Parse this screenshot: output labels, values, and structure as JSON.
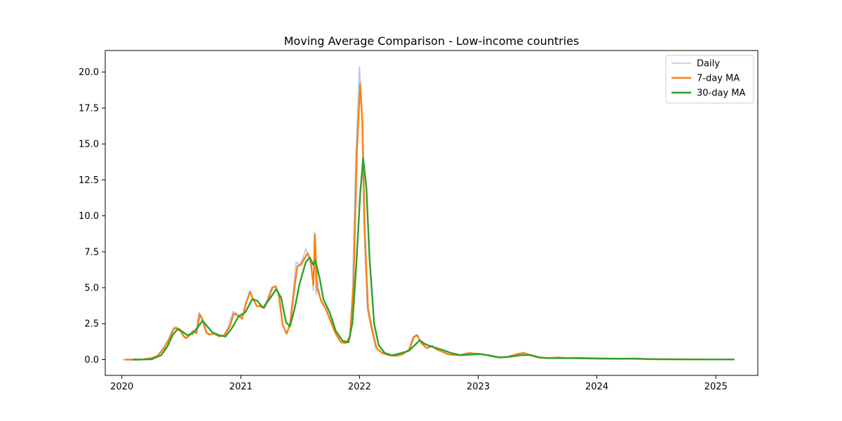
{
  "chart_data": {
    "type": "line",
    "title": "Moving Average Comparison - Low-income countries",
    "xlabel": "",
    "ylabel": "",
    "x_range": [
      "2019-11-11",
      "2025-05-10"
    ],
    "ylim": [
      -1.1,
      21.5
    ],
    "x_ticks": [
      {
        "date": "2020-01-01",
        "label": "2020"
      },
      {
        "date": "2021-01-01",
        "label": "2021"
      },
      {
        "date": "2022-01-01",
        "label": "2022"
      },
      {
        "date": "2023-01-01",
        "label": "2023"
      },
      {
        "date": "2024-01-01",
        "label": "2024"
      },
      {
        "date": "2025-01-01",
        "label": "2025"
      }
    ],
    "y_ticks": [
      {
        "value": 0,
        "label": "0.0"
      },
      {
        "value": 2.5,
        "label": "2.5"
      },
      {
        "value": 5,
        "label": "5.0"
      },
      {
        "value": 7.5,
        "label": "7.5"
      },
      {
        "value": 10,
        "label": "10.0"
      },
      {
        "value": 12.5,
        "label": "12.5"
      },
      {
        "value": 15,
        "label": "15.0"
      },
      {
        "value": 17.5,
        "label": "17.5"
      },
      {
        "value": 20,
        "label": "20.0"
      }
    ],
    "grid": false,
    "legend_position": "top-right",
    "series": [
      {
        "name": "Daily",
        "color": "#aec7e8",
        "points": [
          [
            "2020-01-05",
            0.0
          ],
          [
            "2020-03-01",
            0.0
          ],
          [
            "2020-04-01",
            0.1
          ],
          [
            "2020-04-20",
            0.3
          ],
          [
            "2020-05-10",
            0.9
          ],
          [
            "2020-05-25",
            1.5
          ],
          [
            "2020-06-05",
            2.1
          ],
          [
            "2020-06-12",
            2.3
          ],
          [
            "2020-06-25",
            2.15
          ],
          [
            "2020-07-05",
            1.7
          ],
          [
            "2020-07-15",
            1.45
          ],
          [
            "2020-07-25",
            1.7
          ],
          [
            "2020-08-05",
            2.0
          ],
          [
            "2020-08-15",
            1.8
          ],
          [
            "2020-08-25",
            3.3
          ],
          [
            "2020-09-03",
            2.8
          ],
          [
            "2020-09-15",
            1.9
          ],
          [
            "2020-09-25",
            1.7
          ],
          [
            "2020-10-10",
            1.8
          ],
          [
            "2020-10-25",
            1.6
          ],
          [
            "2020-11-10",
            1.7
          ],
          [
            "2020-11-25",
            2.4
          ],
          [
            "2020-12-08",
            3.35
          ],
          [
            "2020-12-20",
            3.2
          ],
          [
            "2021-01-05",
            2.8
          ],
          [
            "2021-01-15",
            3.8
          ],
          [
            "2021-01-28",
            4.8
          ],
          [
            "2021-02-08",
            4.2
          ],
          [
            "2021-02-18",
            3.7
          ],
          [
            "2021-03-01",
            3.75
          ],
          [
            "2021-03-12",
            3.6
          ],
          [
            "2021-03-25",
            4.3
          ],
          [
            "2021-04-05",
            5.0
          ],
          [
            "2021-04-15",
            5.1
          ],
          [
            "2021-04-25",
            4.7
          ],
          [
            "2021-05-08",
            2.5
          ],
          [
            "2021-05-20",
            1.8
          ],
          [
            "2021-05-30",
            2.3
          ],
          [
            "2021-06-10",
            4.5
          ],
          [
            "2021-06-20",
            6.8
          ],
          [
            "2021-06-30",
            6.6
          ],
          [
            "2021-07-10",
            7.0
          ],
          [
            "2021-07-20",
            7.7
          ],
          [
            "2021-07-28",
            7.2
          ],
          [
            "2021-08-05",
            6.5
          ],
          [
            "2021-08-12",
            4.8
          ],
          [
            "2021-08-15",
            8.9
          ],
          [
            "2021-08-20",
            4.5
          ],
          [
            "2021-08-25",
            5.5
          ],
          [
            "2021-09-05",
            4.0
          ],
          [
            "2021-09-20",
            3.5
          ],
          [
            "2021-10-05",
            2.7
          ],
          [
            "2021-10-20",
            1.8
          ],
          [
            "2021-11-05",
            1.2
          ],
          [
            "2021-11-20",
            1.15
          ],
          [
            "2021-12-01",
            1.5
          ],
          [
            "2021-12-10",
            4.5
          ],
          [
            "2021-12-20",
            14.0
          ],
          [
            "2022-01-01",
            20.4
          ],
          [
            "2022-01-08",
            17.0
          ],
          [
            "2022-01-15",
            9.0
          ],
          [
            "2022-01-25",
            3.5
          ],
          [
            "2022-02-05",
            2.2
          ],
          [
            "2022-02-20",
            0.8
          ],
          [
            "2022-03-10",
            0.45
          ],
          [
            "2022-04-01",
            0.3
          ],
          [
            "2022-04-20",
            0.25
          ],
          [
            "2022-05-10",
            0.35
          ],
          [
            "2022-06-01",
            0.7
          ],
          [
            "2022-06-15",
            1.6
          ],
          [
            "2022-06-25",
            1.75
          ],
          [
            "2022-07-10",
            1.1
          ],
          [
            "2022-07-25",
            0.8
          ],
          [
            "2022-08-10",
            0.95
          ],
          [
            "2022-08-25",
            0.7
          ],
          [
            "2022-09-10",
            0.55
          ],
          [
            "2022-10-01",
            0.35
          ],
          [
            "2022-11-01",
            0.3
          ],
          [
            "2022-12-01",
            0.45
          ],
          [
            "2023-01-01",
            0.4
          ],
          [
            "2023-02-01",
            0.3
          ],
          [
            "2023-03-01",
            0.15
          ],
          [
            "2023-04-01",
            0.2
          ],
          [
            "2023-05-01",
            0.4
          ],
          [
            "2023-05-20",
            0.5
          ],
          [
            "2023-06-10",
            0.3
          ],
          [
            "2023-07-01",
            0.15
          ],
          [
            "2023-08-01",
            0.1
          ],
          [
            "2023-09-01",
            0.15
          ],
          [
            "2023-10-01",
            0.1
          ],
          [
            "2023-11-01",
            0.12
          ],
          [
            "2024-01-01",
            0.08
          ],
          [
            "2024-03-01",
            0.05
          ],
          [
            "2024-05-01",
            0.08
          ],
          [
            "2024-06-01",
            0.03
          ],
          [
            "2024-09-01",
            0.02
          ],
          [
            "2025-01-01",
            0.01
          ],
          [
            "2025-02-25",
            0.01
          ]
        ]
      },
      {
        "name": "7-day MA",
        "color": "#ff7f0e",
        "points": [
          [
            "2020-01-12",
            0.0
          ],
          [
            "2020-03-01",
            0.0
          ],
          [
            "2020-04-01",
            0.1
          ],
          [
            "2020-04-20",
            0.25
          ],
          [
            "2020-05-10",
            0.8
          ],
          [
            "2020-05-25",
            1.4
          ],
          [
            "2020-06-08",
            2.1
          ],
          [
            "2020-06-15",
            2.2
          ],
          [
            "2020-06-28",
            2.1
          ],
          [
            "2020-07-08",
            1.65
          ],
          [
            "2020-07-18",
            1.5
          ],
          [
            "2020-07-28",
            1.7
          ],
          [
            "2020-08-08",
            2.0
          ],
          [
            "2020-08-18",
            1.85
          ],
          [
            "2020-08-28",
            3.15
          ],
          [
            "2020-09-05",
            2.8
          ],
          [
            "2020-09-18",
            1.85
          ],
          [
            "2020-09-28",
            1.75
          ],
          [
            "2020-10-12",
            1.8
          ],
          [
            "2020-10-28",
            1.6
          ],
          [
            "2020-11-12",
            1.7
          ],
          [
            "2020-11-28",
            2.3
          ],
          [
            "2020-12-10",
            3.2
          ],
          [
            "2020-12-22",
            3.1
          ],
          [
            "2021-01-05",
            2.85
          ],
          [
            "2021-01-18",
            4.0
          ],
          [
            "2021-01-30",
            4.7
          ],
          [
            "2021-02-10",
            4.1
          ],
          [
            "2021-02-20",
            3.7
          ],
          [
            "2021-03-03",
            3.7
          ],
          [
            "2021-03-15",
            3.6
          ],
          [
            "2021-03-28",
            4.3
          ],
          [
            "2021-04-08",
            5.0
          ],
          [
            "2021-04-18",
            5.1
          ],
          [
            "2021-04-28",
            4.5
          ],
          [
            "2021-05-10",
            2.4
          ],
          [
            "2021-05-22",
            1.8
          ],
          [
            "2021-06-02",
            2.5
          ],
          [
            "2021-06-14",
            4.8
          ],
          [
            "2021-06-24",
            6.5
          ],
          [
            "2021-07-05",
            6.6
          ],
          [
            "2021-07-15",
            7.0
          ],
          [
            "2021-07-25",
            7.4
          ],
          [
            "2021-08-03",
            7.0
          ],
          [
            "2021-08-12",
            5.2
          ],
          [
            "2021-08-17",
            8.7
          ],
          [
            "2021-08-23",
            5.0
          ],
          [
            "2021-09-05",
            4.1
          ],
          [
            "2021-09-20",
            3.5
          ],
          [
            "2021-10-05",
            2.6
          ],
          [
            "2021-10-20",
            1.8
          ],
          [
            "2021-11-05",
            1.2
          ],
          [
            "2021-11-20",
            1.15
          ],
          [
            "2021-12-03",
            1.6
          ],
          [
            "2021-12-14",
            5.5
          ],
          [
            "2021-12-24",
            14.5
          ],
          [
            "2022-01-03",
            19.2
          ],
          [
            "2022-01-10",
            16.5
          ],
          [
            "2022-01-17",
            9.0
          ],
          [
            "2022-01-27",
            3.6
          ],
          [
            "2022-02-08",
            2.2
          ],
          [
            "2022-02-22",
            0.8
          ],
          [
            "2022-03-12",
            0.45
          ],
          [
            "2022-04-03",
            0.3
          ],
          [
            "2022-04-22",
            0.25
          ],
          [
            "2022-05-12",
            0.35
          ],
          [
            "2022-06-03",
            0.7
          ],
          [
            "2022-06-17",
            1.55
          ],
          [
            "2022-06-27",
            1.7
          ],
          [
            "2022-07-12",
            1.1
          ],
          [
            "2022-07-27",
            0.8
          ],
          [
            "2022-08-12",
            0.95
          ],
          [
            "2022-08-27",
            0.7
          ],
          [
            "2022-09-12",
            0.55
          ],
          [
            "2022-10-03",
            0.35
          ],
          [
            "2022-11-03",
            0.3
          ],
          [
            "2022-12-03",
            0.45
          ],
          [
            "2023-01-03",
            0.4
          ],
          [
            "2023-02-03",
            0.3
          ],
          [
            "2023-03-03",
            0.15
          ],
          [
            "2023-04-03",
            0.2
          ],
          [
            "2023-05-03",
            0.4
          ],
          [
            "2023-05-22",
            0.45
          ],
          [
            "2023-06-12",
            0.3
          ],
          [
            "2023-07-03",
            0.15
          ],
          [
            "2023-08-03",
            0.1
          ],
          [
            "2023-09-03",
            0.15
          ],
          [
            "2023-10-03",
            0.1
          ],
          [
            "2023-11-03",
            0.12
          ],
          [
            "2024-01-03",
            0.08
          ],
          [
            "2024-03-03",
            0.05
          ],
          [
            "2024-05-03",
            0.08
          ],
          [
            "2024-06-03",
            0.03
          ],
          [
            "2024-09-03",
            0.02
          ],
          [
            "2025-01-03",
            0.01
          ],
          [
            "2025-02-25",
            0.01
          ]
        ]
      },
      {
        "name": "30-day MA",
        "color": "#2ca02c",
        "points": [
          [
            "2020-02-05",
            0.0
          ],
          [
            "2020-04-01",
            0.02
          ],
          [
            "2020-05-01",
            0.3
          ],
          [
            "2020-05-20",
            0.9
          ],
          [
            "2020-06-05",
            1.7
          ],
          [
            "2020-06-20",
            2.1
          ],
          [
            "2020-07-05",
            1.95
          ],
          [
            "2020-07-20",
            1.7
          ],
          [
            "2020-08-05",
            1.8
          ],
          [
            "2020-08-20",
            2.2
          ],
          [
            "2020-09-05",
            2.7
          ],
          [
            "2020-09-20",
            2.3
          ],
          [
            "2020-10-05",
            1.9
          ],
          [
            "2020-10-25",
            1.7
          ],
          [
            "2020-11-15",
            1.6
          ],
          [
            "2020-12-05",
            2.2
          ],
          [
            "2020-12-25",
            3.0
          ],
          [
            "2021-01-15",
            3.3
          ],
          [
            "2021-02-05",
            4.2
          ],
          [
            "2021-02-20",
            4.1
          ],
          [
            "2021-03-10",
            3.6
          ],
          [
            "2021-03-30",
            4.2
          ],
          [
            "2021-04-20",
            4.9
          ],
          [
            "2021-05-05",
            4.3
          ],
          [
            "2021-05-20",
            2.6
          ],
          [
            "2021-06-01",
            2.3
          ],
          [
            "2021-06-15",
            3.5
          ],
          [
            "2021-07-01",
            5.3
          ],
          [
            "2021-07-20",
            6.8
          ],
          [
            "2021-08-01",
            7.1
          ],
          [
            "2021-08-12",
            6.6
          ],
          [
            "2021-08-18",
            6.9
          ],
          [
            "2021-09-01",
            5.6
          ],
          [
            "2021-09-12",
            4.2
          ],
          [
            "2021-10-01",
            3.3
          ],
          [
            "2021-10-20",
            2.0
          ],
          [
            "2021-11-10",
            1.3
          ],
          [
            "2021-11-28",
            1.2
          ],
          [
            "2021-12-10",
            2.5
          ],
          [
            "2021-12-22",
            6.5
          ],
          [
            "2022-01-03",
            11.5
          ],
          [
            "2022-01-12",
            14.0
          ],
          [
            "2022-01-22",
            12.0
          ],
          [
            "2022-02-01",
            7.0
          ],
          [
            "2022-02-15",
            2.5
          ],
          [
            "2022-03-01",
            1.0
          ],
          [
            "2022-03-20",
            0.45
          ],
          [
            "2022-04-10",
            0.3
          ],
          [
            "2022-05-01",
            0.4
          ],
          [
            "2022-06-01",
            0.6
          ],
          [
            "2022-06-20",
            1.0
          ],
          [
            "2022-07-05",
            1.35
          ],
          [
            "2022-07-20",
            1.1
          ],
          [
            "2022-08-10",
            0.9
          ],
          [
            "2022-09-10",
            0.7
          ],
          [
            "2022-10-10",
            0.45
          ],
          [
            "2022-11-10",
            0.3
          ],
          [
            "2022-12-10",
            0.35
          ],
          [
            "2023-01-10",
            0.38
          ],
          [
            "2023-02-10",
            0.25
          ],
          [
            "2023-03-10",
            0.15
          ],
          [
            "2023-04-10",
            0.2
          ],
          [
            "2023-05-10",
            0.3
          ],
          [
            "2023-06-10",
            0.32
          ],
          [
            "2023-07-10",
            0.15
          ],
          [
            "2023-08-10",
            0.1
          ],
          [
            "2023-10-10",
            0.1
          ],
          [
            "2024-01-10",
            0.07
          ],
          [
            "2024-04-10",
            0.06
          ],
          [
            "2024-07-10",
            0.03
          ],
          [
            "2025-01-01",
            0.01
          ],
          [
            "2025-02-25",
            0.01
          ]
        ]
      }
    ]
  }
}
